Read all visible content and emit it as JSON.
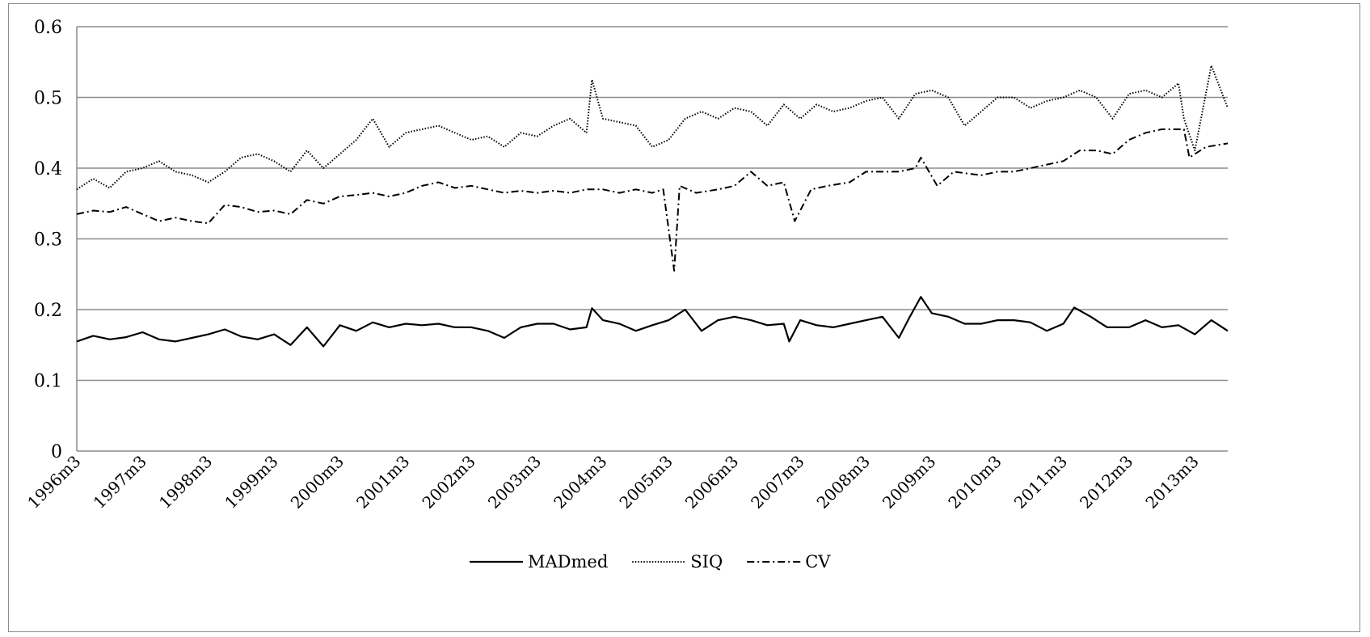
{
  "chart_data": {
    "type": "line",
    "title": "",
    "xlabel": "",
    "ylabel": "",
    "ylim": [
      0,
      0.6
    ],
    "yticks": [
      "0",
      "0.1",
      "0.2",
      "0.3",
      "0.4",
      "0.5",
      "0.6"
    ],
    "grid": "horizontal",
    "legend_position": "bottom",
    "x_tick_labels": [
      "1996m3",
      "1997m3",
      "1998m3",
      "1999m3",
      "2000m3",
      "2001m3",
      "2002m3",
      "2003m3",
      "2004m3",
      "2005m3",
      "2006m3",
      "2007m3",
      "2008m3",
      "2009m3",
      "2010m3",
      "2011m3",
      "2012m3",
      "2013m3"
    ],
    "x_start_period": "1996m3",
    "x_end_period": "2013m9",
    "series": [
      {
        "name": "MADmed",
        "style": "solid",
        "color": "#000000",
        "anchors": [
          [
            "1996m3",
            0.155
          ],
          [
            "1996m6",
            0.163
          ],
          [
            "1996m9",
            0.158
          ],
          [
            "1996m12",
            0.161
          ],
          [
            "1997m3",
            0.168
          ],
          [
            "1997m6",
            0.158
          ],
          [
            "1997m9",
            0.155
          ],
          [
            "1997m12",
            0.16
          ],
          [
            "1998m3",
            0.165
          ],
          [
            "1998m6",
            0.172
          ],
          [
            "1998m9",
            0.162
          ],
          [
            "1998m12",
            0.158
          ],
          [
            "1999m3",
            0.165
          ],
          [
            "1999m6",
            0.15
          ],
          [
            "1999m9",
            0.175
          ],
          [
            "1999m12",
            0.148
          ],
          [
            "2000m3",
            0.178
          ],
          [
            "2000m6",
            0.17
          ],
          [
            "2000m9",
            0.182
          ],
          [
            "2000m12",
            0.175
          ],
          [
            "2001m3",
            0.18
          ],
          [
            "2001m6",
            0.178
          ],
          [
            "2001m9",
            0.18
          ],
          [
            "2001m12",
            0.175
          ],
          [
            "2002m3",
            0.175
          ],
          [
            "2002m6",
            0.17
          ],
          [
            "2002m9",
            0.16
          ],
          [
            "2002m12",
            0.175
          ],
          [
            "2003m3",
            0.18
          ],
          [
            "2003m6",
            0.18
          ],
          [
            "2003m9",
            0.172
          ],
          [
            "2003m12",
            0.175
          ],
          [
            "2004m1",
            0.202
          ],
          [
            "2004m3",
            0.185
          ],
          [
            "2004m6",
            0.18
          ],
          [
            "2004m9",
            0.17
          ],
          [
            "2004m12",
            0.178
          ],
          [
            "2005m3",
            0.185
          ],
          [
            "2005m6",
            0.2
          ],
          [
            "2005m9",
            0.17
          ],
          [
            "2005m12",
            0.185
          ],
          [
            "2006m3",
            0.19
          ],
          [
            "2006m6",
            0.185
          ],
          [
            "2006m9",
            0.178
          ],
          [
            "2006m12",
            0.18
          ],
          [
            "2007m1",
            0.155
          ],
          [
            "2007m3",
            0.185
          ],
          [
            "2007m6",
            0.178
          ],
          [
            "2007m9",
            0.175
          ],
          [
            "2007m12",
            0.18
          ],
          [
            "2008m3",
            0.185
          ],
          [
            "2008m6",
            0.19
          ],
          [
            "2008m9",
            0.16
          ],
          [
            "2008m11",
            0.19
          ],
          [
            "2009m1",
            0.218
          ],
          [
            "2009m3",
            0.195
          ],
          [
            "2009m6",
            0.19
          ],
          [
            "2009m9",
            0.18
          ],
          [
            "2009m12",
            0.18
          ],
          [
            "2010m3",
            0.185
          ],
          [
            "2010m6",
            0.185
          ],
          [
            "2010m9",
            0.182
          ],
          [
            "2010m12",
            0.17
          ],
          [
            "2011m3",
            0.18
          ],
          [
            "2011m5",
            0.203
          ],
          [
            "2011m8",
            0.19
          ],
          [
            "2011m11",
            0.175
          ],
          [
            "2012m3",
            0.175
          ],
          [
            "2012m6",
            0.185
          ],
          [
            "2012m9",
            0.175
          ],
          [
            "2012m12",
            0.178
          ],
          [
            "2013m3",
            0.165
          ],
          [
            "2013m6",
            0.185
          ],
          [
            "2013m9",
            0.17
          ]
        ]
      },
      {
        "name": "SIQ",
        "style": "dotted",
        "color": "#000000",
        "anchors": [
          [
            "1996m3",
            0.37
          ],
          [
            "1996m6",
            0.385
          ],
          [
            "1996m9",
            0.372
          ],
          [
            "1996m12",
            0.395
          ],
          [
            "1997m3",
            0.4
          ],
          [
            "1997m6",
            0.41
          ],
          [
            "1997m9",
            0.395
          ],
          [
            "1997m12",
            0.39
          ],
          [
            "1998m3",
            0.38
          ],
          [
            "1998m6",
            0.395
          ],
          [
            "1998m9",
            0.415
          ],
          [
            "1998m12",
            0.42
          ],
          [
            "1999m3",
            0.41
          ],
          [
            "1999m6",
            0.395
          ],
          [
            "1999m9",
            0.425
          ],
          [
            "1999m12",
            0.4
          ],
          [
            "2000m3",
            0.42
          ],
          [
            "2000m6",
            0.44
          ],
          [
            "2000m9",
            0.47
          ],
          [
            "2000m12",
            0.43
          ],
          [
            "2001m3",
            0.45
          ],
          [
            "2001m6",
            0.455
          ],
          [
            "2001m9",
            0.46
          ],
          [
            "2001m12",
            0.45
          ],
          [
            "2002m3",
            0.44
          ],
          [
            "2002m6",
            0.445
          ],
          [
            "2002m9",
            0.43
          ],
          [
            "2002m12",
            0.45
          ],
          [
            "2003m3",
            0.445
          ],
          [
            "2003m6",
            0.46
          ],
          [
            "2003m9",
            0.47
          ],
          [
            "2003m12",
            0.45
          ],
          [
            "2004m1",
            0.525
          ],
          [
            "2004m3",
            0.47
          ],
          [
            "2004m6",
            0.465
          ],
          [
            "2004m9",
            0.46
          ],
          [
            "2004m12",
            0.43
          ],
          [
            "2005m3",
            0.44
          ],
          [
            "2005m6",
            0.47
          ],
          [
            "2005m9",
            0.48
          ],
          [
            "2005m12",
            0.47
          ],
          [
            "2006m3",
            0.485
          ],
          [
            "2006m6",
            0.48
          ],
          [
            "2006m9",
            0.46
          ],
          [
            "2006m12",
            0.49
          ],
          [
            "2007m3",
            0.47
          ],
          [
            "2007m6",
            0.49
          ],
          [
            "2007m9",
            0.48
          ],
          [
            "2007m12",
            0.485
          ],
          [
            "2008m3",
            0.495
          ],
          [
            "2008m6",
            0.5
          ],
          [
            "2008m9",
            0.47
          ],
          [
            "2008m12",
            0.505
          ],
          [
            "2009m3",
            0.51
          ],
          [
            "2009m6",
            0.5
          ],
          [
            "2009m9",
            0.46
          ],
          [
            "2009m12",
            0.48
          ],
          [
            "2010m3",
            0.5
          ],
          [
            "2010m6",
            0.5
          ],
          [
            "2010m9",
            0.485
          ],
          [
            "2010m12",
            0.495
          ],
          [
            "2011m3",
            0.5
          ],
          [
            "2011m6",
            0.51
          ],
          [
            "2011m9",
            0.5
          ],
          [
            "2011m12",
            0.47
          ],
          [
            "2012m3",
            0.505
          ],
          [
            "2012m6",
            0.51
          ],
          [
            "2012m9",
            0.5
          ],
          [
            "2012m12",
            0.52
          ],
          [
            "2013m1",
            0.47
          ],
          [
            "2013m3",
            0.425
          ],
          [
            "2013m6",
            0.545
          ],
          [
            "2013m9",
            0.485
          ]
        ]
      },
      {
        "name": "CV",
        "style": "dashdot",
        "color": "#000000",
        "anchors": [
          [
            "1996m3",
            0.335
          ],
          [
            "1996m6",
            0.34
          ],
          [
            "1996m9",
            0.338
          ],
          [
            "1996m12",
            0.345
          ],
          [
            "1997m3",
            0.335
          ],
          [
            "1997m6",
            0.325
          ],
          [
            "1997m9",
            0.33
          ],
          [
            "1997m12",
            0.325
          ],
          [
            "1998m3",
            0.322
          ],
          [
            "1998m6",
            0.348
          ],
          [
            "1998m9",
            0.345
          ],
          [
            "1998m12",
            0.338
          ],
          [
            "1999m3",
            0.34
          ],
          [
            "1999m6",
            0.335
          ],
          [
            "1999m9",
            0.355
          ],
          [
            "1999m12",
            0.35
          ],
          [
            "2000m3",
            0.36
          ],
          [
            "2000m6",
            0.362
          ],
          [
            "2000m9",
            0.365
          ],
          [
            "2000m12",
            0.36
          ],
          [
            "2001m3",
            0.365
          ],
          [
            "2001m6",
            0.375
          ],
          [
            "2001m9",
            0.38
          ],
          [
            "2001m12",
            0.372
          ],
          [
            "2002m3",
            0.375
          ],
          [
            "2002m6",
            0.37
          ],
          [
            "2002m9",
            0.365
          ],
          [
            "2002m12",
            0.368
          ],
          [
            "2003m3",
            0.365
          ],
          [
            "2003m6",
            0.368
          ],
          [
            "2003m9",
            0.365
          ],
          [
            "2003m12",
            0.37
          ],
          [
            "2004m3",
            0.37
          ],
          [
            "2004m6",
            0.365
          ],
          [
            "2004m9",
            0.37
          ],
          [
            "2004m12",
            0.365
          ],
          [
            "2005m2",
            0.37
          ],
          [
            "2005m4",
            0.255
          ],
          [
            "2005m5",
            0.375
          ],
          [
            "2005m8",
            0.365
          ],
          [
            "2005m12",
            0.37
          ],
          [
            "2006m3",
            0.375
          ],
          [
            "2006m6",
            0.395
          ],
          [
            "2006m9",
            0.375
          ],
          [
            "2006m12",
            0.38
          ],
          [
            "2007m2",
            0.325
          ],
          [
            "2007m5",
            0.37
          ],
          [
            "2007m8",
            0.375
          ],
          [
            "2007m12",
            0.38
          ],
          [
            "2008m3",
            0.395
          ],
          [
            "2008m6",
            0.395
          ],
          [
            "2008m9",
            0.395
          ],
          [
            "2008m12",
            0.4
          ],
          [
            "2009m1",
            0.415
          ],
          [
            "2009m4",
            0.375
          ],
          [
            "2009m7",
            0.395
          ],
          [
            "2009m12",
            0.39
          ],
          [
            "2010m3",
            0.395
          ],
          [
            "2010m6",
            0.395
          ],
          [
            "2010m9",
            0.4
          ],
          [
            "2010m12",
            0.405
          ],
          [
            "2011m3",
            0.41
          ],
          [
            "2011m6",
            0.425
          ],
          [
            "2011m9",
            0.425
          ],
          [
            "2011m12",
            0.42
          ],
          [
            "2012m3",
            0.44
          ],
          [
            "2012m6",
            0.45
          ],
          [
            "2012m9",
            0.455
          ],
          [
            "2012m12",
            0.455
          ],
          [
            "2013m1",
            0.455
          ],
          [
            "2013m2",
            0.415
          ],
          [
            "2013m5",
            0.43
          ],
          [
            "2013m9",
            0.435
          ]
        ]
      }
    ]
  }
}
